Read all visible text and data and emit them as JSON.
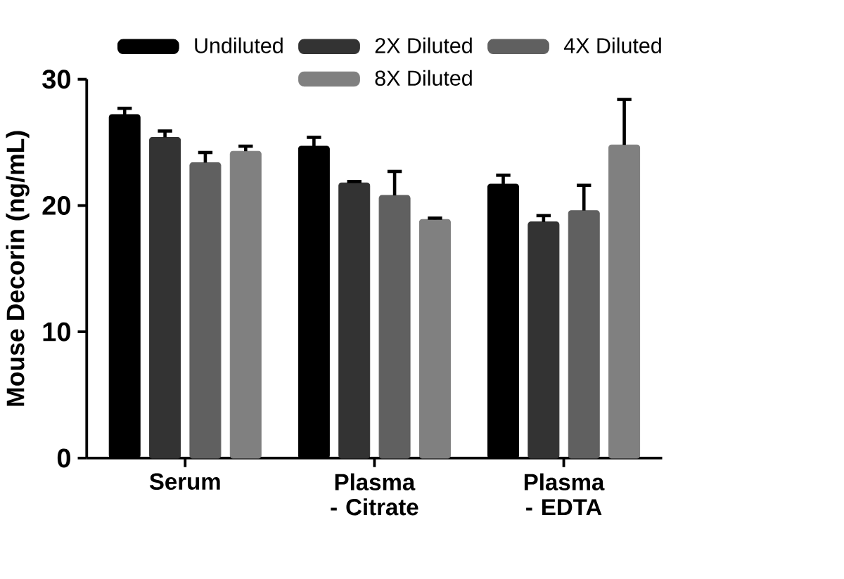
{
  "chart_data": {
    "type": "bar",
    "ylabel": "Mouse Decorin (ng/mL)",
    "categories": [
      "Serum",
      "Plasma - Citrate",
      "Plasma - EDTA"
    ],
    "series": [
      {
        "name": "Undiluted",
        "color": "#000000",
        "values": [
          27.2,
          24.7,
          21.7
        ],
        "errors": [
          0.5,
          0.7,
          0.7
        ]
      },
      {
        "name": "2X Diluted",
        "color": "#333333",
        "values": [
          25.4,
          21.8,
          18.7
        ],
        "errors": [
          0.5,
          0.1,
          0.5
        ]
      },
      {
        "name": "4X Diluted",
        "color": "#606060",
        "values": [
          23.4,
          20.8,
          19.6
        ],
        "errors": [
          0.8,
          1.9,
          2.0
        ]
      },
      {
        "name": "8X Diluted",
        "color": "#808080",
        "values": [
          24.3,
          18.9,
          24.8
        ],
        "errors": [
          0.4,
          0.1,
          3.6
        ]
      }
    ],
    "ylim": [
      0,
      30
    ],
    "yticks": [
      0,
      10,
      20,
      30
    ],
    "legend": "top"
  }
}
